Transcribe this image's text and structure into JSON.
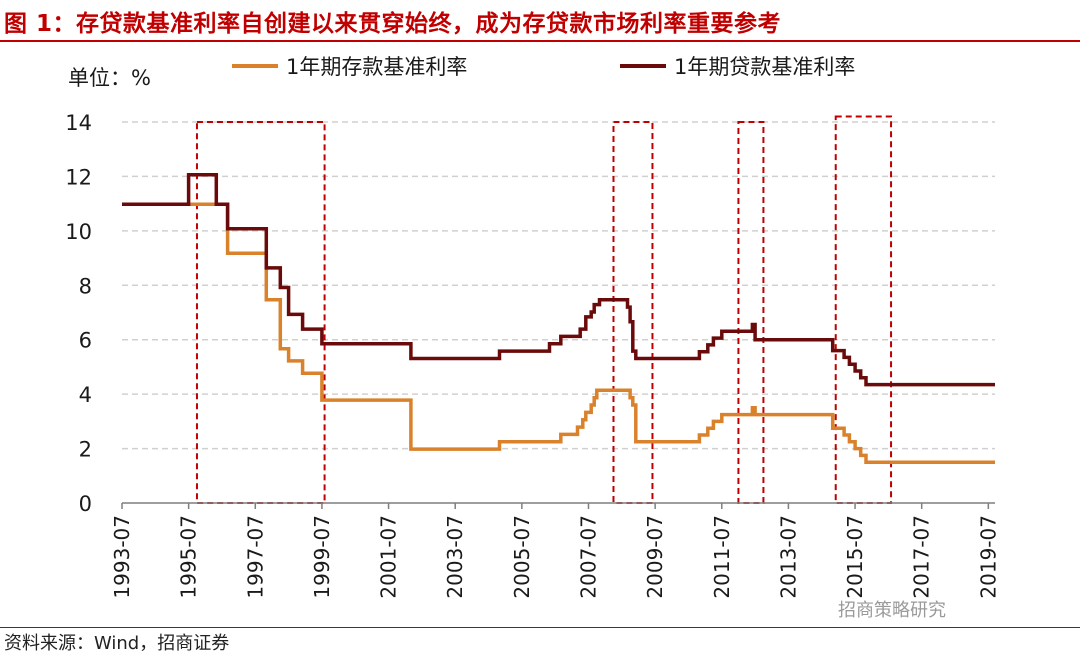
{
  "title": "图 1：存贷款基准利率自创建以来贯穿始终，成为存贷款市场利率重要参考",
  "source": "资料来源：Wind，招商证券",
  "watermark": "招商策略研究",
  "colors": {
    "title": "#c00000",
    "deposit": "#d9822b",
    "loan": "#6b0a0a",
    "highlight_box": "#c00000",
    "grid": "#d0d0d0"
  },
  "chart_data": {
    "type": "line",
    "step": true,
    "ylabel": "单位：%",
    "ylim": [
      0,
      14
    ],
    "yticks": [
      0,
      2,
      4,
      6,
      8,
      10,
      12,
      14
    ],
    "xlim": [
      1993.5,
      2019.7
    ],
    "xticks": [
      1993.5,
      1995.5,
      1997.5,
      1999.5,
      2001.5,
      2003.5,
      2005.5,
      2007.5,
      2009.5,
      2011.5,
      2013.5,
      2015.5,
      2017.5,
      2019.5
    ],
    "xtick_labels": [
      "1993-07",
      "1995-07",
      "1997-07",
      "1999-07",
      "2001-07",
      "2003-07",
      "2005-07",
      "2007-07",
      "2009-07",
      "2011-07",
      "2013-07",
      "2015-07",
      "2017-07",
      "2019-07"
    ],
    "grid": "horizontal dashed",
    "legend_position": "top",
    "series": [
      {
        "name": "1年期存款基准利率",
        "color": "#d9822b",
        "x": [
          1993.5,
          1996.33,
          1996.67,
          1997.83,
          1998.25,
          1998.5,
          1998.92,
          1999.5,
          2002.17,
          2004.83,
          2006.67,
          2007.17,
          2007.33,
          2007.42,
          2007.58,
          2007.67,
          2007.75,
          2008.75,
          2008.83,
          2008.92,
          2010.83,
          2011.08,
          2011.25,
          2011.5,
          2012.42,
          2012.5,
          2014.83,
          2015.17,
          2015.33,
          2015.5,
          2015.67,
          2015.83,
          2019.7
        ],
        "y": [
          10.98,
          10.98,
          9.18,
          7.47,
          5.67,
          5.22,
          4.77,
          3.78,
          1.98,
          2.25,
          2.52,
          2.79,
          3.06,
          3.33,
          3.6,
          3.87,
          4.14,
          3.87,
          3.6,
          2.25,
          2.5,
          2.75,
          3.0,
          3.25,
          3.5,
          3.25,
          2.75,
          2.5,
          2.25,
          2.0,
          1.75,
          1.5,
          1.5
        ]
      },
      {
        "name": "1年期贷款基准利率",
        "color": "#6b0a0a",
        "x": [
          1993.5,
          1995.0,
          1995.5,
          1996.33,
          1996.67,
          1997.83,
          1998.25,
          1998.5,
          1998.92,
          1999.5,
          2002.17,
          2004.83,
          2006.33,
          2006.67,
          2007.25,
          2007.42,
          2007.58,
          2007.67,
          2007.83,
          2008.67,
          2008.75,
          2008.83,
          2008.92,
          2010.83,
          2011.08,
          2011.25,
          2011.5,
          2012.42,
          2012.5,
          2014.83,
          2015.17,
          2015.33,
          2015.5,
          2015.67,
          2015.83,
          2019.7
        ],
        "y": [
          10.98,
          10.98,
          12.06,
          10.98,
          10.08,
          8.64,
          7.92,
          6.93,
          6.39,
          5.85,
          5.31,
          5.58,
          5.85,
          6.12,
          6.39,
          6.84,
          7.02,
          7.29,
          7.47,
          7.2,
          6.66,
          5.58,
          5.31,
          5.56,
          5.81,
          6.06,
          6.31,
          6.56,
          6.0,
          5.6,
          5.35,
          5.1,
          4.85,
          4.6,
          4.35,
          4.35
        ]
      }
    ],
    "highlight_boxes": [
      {
        "x0": 1995.75,
        "x1": 1999.58,
        "y0": 0,
        "y1": 14
      },
      {
        "x0": 2008.25,
        "x1": 2009.42,
        "y0": 0,
        "y1": 14
      },
      {
        "x0": 2012.0,
        "x1": 2012.75,
        "y0": 0,
        "y1": 14
      },
      {
        "x0": 2014.92,
        "x1": 2016.58,
        "y0": 0,
        "y1": 14.2
      }
    ]
  }
}
